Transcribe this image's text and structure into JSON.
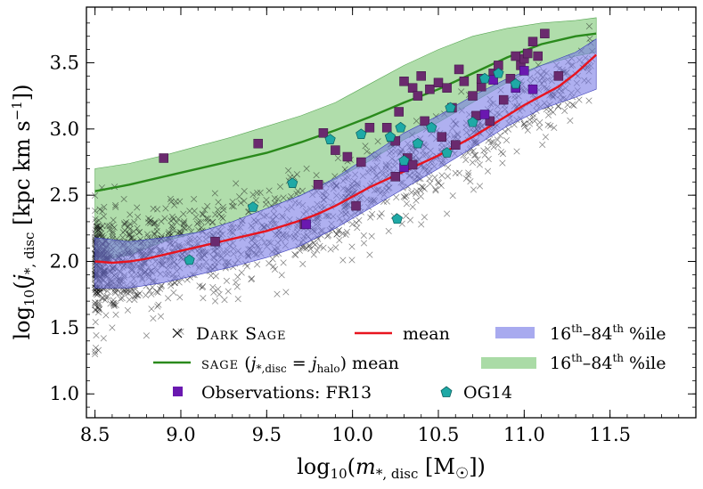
{
  "chart_data": {
    "type": "scatter",
    "xlabel": "log10(m*, disc [M☉])",
    "ylabel": "log10(j*, disc [kpc km s−1])",
    "xlim": [
      8.45,
      12.0
    ],
    "ylim": [
      0.82,
      3.92
    ],
    "xticks": [
      8.5,
      9.0,
      9.5,
      10.0,
      10.5,
      11.0,
      11.5
    ],
    "yticks": [
      1.0,
      1.5,
      2.0,
      2.5,
      3.0,
      3.5
    ],
    "xtick_labels": [
      "8.5",
      "9.0",
      "9.5",
      "10.0",
      "10.5",
      "11.0",
      "11.5"
    ],
    "ytick_labels": [
      "1.0",
      "1.5",
      "2.0",
      "2.5",
      "3.0",
      "3.5"
    ],
    "dark_sage_mean": {
      "x": [
        8.5,
        8.6,
        8.7,
        8.8,
        8.9,
        9.0,
        9.1,
        9.2,
        9.3,
        9.4,
        9.5,
        9.6,
        9.7,
        9.8,
        9.9,
        10.0,
        10.1,
        10.2,
        10.3,
        10.4,
        10.5,
        10.6,
        10.7,
        10.8,
        10.9,
        11.0,
        11.1,
        11.2,
        11.3,
        11.42
      ],
      "y": [
        2.0,
        1.99,
        2.0,
        2.02,
        2.05,
        2.08,
        2.11,
        2.14,
        2.17,
        2.2,
        2.23,
        2.27,
        2.31,
        2.36,
        2.42,
        2.49,
        2.56,
        2.62,
        2.68,
        2.74,
        2.8,
        2.87,
        2.94,
        3.02,
        3.1,
        3.18,
        3.25,
        3.32,
        3.42,
        3.56
      ]
    },
    "dark_sage_band": {
      "x": [
        8.5,
        8.7,
        8.9,
        9.1,
        9.3,
        9.5,
        9.7,
        9.9,
        10.1,
        10.3,
        10.5,
        10.7,
        10.9,
        11.1,
        11.3,
        11.42
      ],
      "lower": [
        1.8,
        1.8,
        1.84,
        1.9,
        1.96,
        2.03,
        2.12,
        2.25,
        2.4,
        2.55,
        2.7,
        2.86,
        3.02,
        3.15,
        3.24,
        3.3
      ],
      "upper": [
        2.18,
        2.15,
        2.18,
        2.22,
        2.3,
        2.4,
        2.5,
        2.63,
        2.8,
        2.97,
        3.1,
        3.25,
        3.38,
        3.48,
        3.58,
        3.68
      ]
    },
    "sage_mean": {
      "x": [
        8.5,
        8.7,
        8.9,
        9.1,
        9.3,
        9.5,
        9.7,
        9.9,
        10.1,
        10.3,
        10.5,
        10.7,
        10.9,
        11.1,
        11.3,
        11.42
      ],
      "y": [
        2.53,
        2.58,
        2.64,
        2.7,
        2.76,
        2.82,
        2.9,
        2.99,
        3.09,
        3.2,
        3.3,
        3.42,
        3.54,
        3.64,
        3.7,
        3.72
      ]
    },
    "sage_band": {
      "x": [
        8.5,
        8.7,
        8.9,
        9.1,
        9.3,
        9.5,
        9.7,
        9.9,
        10.1,
        10.3,
        10.5,
        10.7,
        10.9,
        11.1,
        11.3,
        11.42
      ],
      "lower": [
        2.0,
        2.05,
        2.15,
        2.22,
        2.3,
        2.4,
        2.5,
        2.62,
        2.76,
        2.92,
        3.05,
        3.2,
        3.35,
        3.48,
        3.55,
        3.58
      ],
      "upper": [
        2.7,
        2.74,
        2.8,
        2.87,
        2.94,
        3.02,
        3.1,
        3.2,
        3.34,
        3.48,
        3.6,
        3.7,
        3.76,
        3.8,
        3.82,
        3.84
      ]
    },
    "fr13": {
      "x": [
        8.9,
        9.2,
        9.45,
        9.72,
        9.8,
        9.83,
        9.9,
        9.97,
        10.05,
        10.1,
        10.2,
        10.25,
        10.25,
        10.27,
        10.3,
        10.32,
        10.35,
        10.35,
        10.38,
        10.4,
        10.42,
        10.45,
        10.5,
        10.52,
        10.55,
        10.58,
        10.6,
        10.62,
        10.65,
        10.7,
        10.72,
        10.75,
        10.75,
        10.8,
        10.82,
        10.85,
        10.88,
        10.92,
        10.95,
        10.98,
        11.0,
        11.02,
        11.05,
        11.08,
        11.12,
        11.2,
        10.02
      ],
      "y": [
        2.78,
        2.15,
        2.89,
        2.28,
        2.58,
        2.97,
        2.84,
        2.79,
        2.75,
        3.01,
        3.01,
        2.91,
        2.64,
        3.13,
        3.36,
        2.78,
        3.31,
        2.73,
        3.25,
        3.4,
        3.06,
        3.3,
        3.35,
        2.94,
        3.31,
        3.16,
        2.88,
        3.45,
        3.36,
        3.25,
        3.1,
        3.32,
        3.38,
        3.06,
        3.42,
        3.48,
        3.22,
        3.38,
        3.55,
        3.48,
        3.53,
        3.57,
        3.66,
        3.55,
        3.72,
        3.4,
        2.42
      ]
    },
    "fr13_violet": {
      "x": [
        9.73,
        10.3,
        10.77,
        10.82,
        10.95,
        11.0,
        11.05
      ],
      "y": [
        2.28,
        2.71,
        3.11,
        3.37,
        3.31,
        3.44,
        3.3
      ]
    },
    "og14": {
      "x": [
        9.05,
        9.42,
        9.65,
        9.87,
        10.05,
        10.22,
        10.26,
        10.28,
        10.3,
        10.38,
        10.46,
        10.55,
        10.57,
        10.7,
        10.77,
        10.85,
        10.95
      ],
      "y": [
        2.01,
        2.41,
        2.59,
        2.92,
        2.96,
        2.94,
        2.32,
        3.01,
        2.76,
        2.89,
        3.01,
        2.82,
        3.16,
        3.05,
        3.38,
        3.42,
        3.34
      ]
    },
    "legend": {
      "dark_sage": "Dark Sage",
      "mean": "mean",
      "percentile_1": "16th–84th %ile",
      "sage": "sage (j*,disc = jhalo) mean",
      "percentile_2": "16th–84th %ile",
      "observations": "Observations: FR13",
      "og14": "OG14"
    },
    "colors": {
      "dark_sage_scatter": "#111111",
      "dark_sage_mean": "#e8141e",
      "dark_sage_band": "#7a7ce6",
      "sage_mean": "#2a8a1c",
      "sage_band": "#8ecf88",
      "fr13": "#6a2a6e",
      "fr13_violet": "#6a18b0",
      "og14": "#1fa9a6"
    }
  }
}
